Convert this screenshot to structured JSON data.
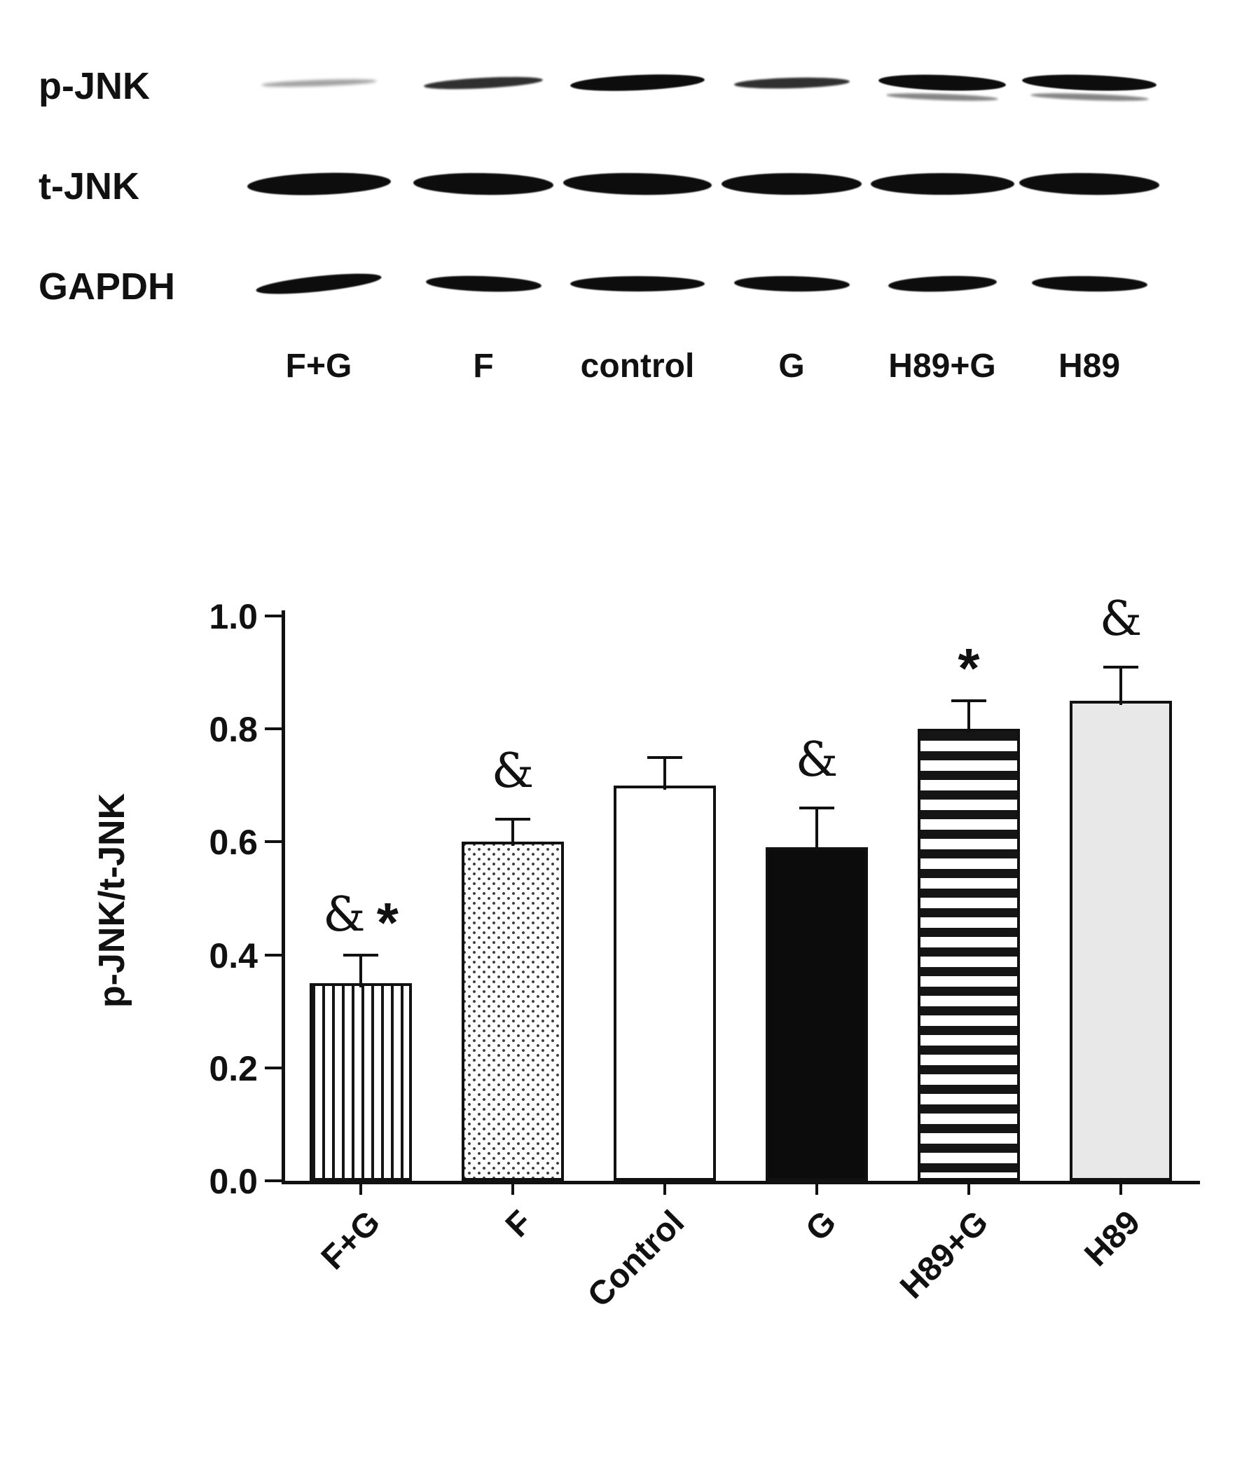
{
  "figure": {
    "blot": {
      "rows": [
        {
          "label": "p-JNK",
          "bands": [
            "faint",
            "medium",
            "strong",
            "medium",
            "strong-double",
            "strong-double"
          ]
        },
        {
          "label": "t-JNK",
          "bands": [
            "heavy",
            "heavy",
            "heavy",
            "heavy",
            "heavy",
            "heavy"
          ]
        },
        {
          "label": "GAPDH",
          "bands": [
            "strong",
            "strong",
            "strong",
            "strong",
            "strong",
            "strong"
          ]
        }
      ],
      "lane_labels": [
        "F+G",
        "F",
        "control",
        "G",
        "H89+G",
        "H89"
      ]
    }
  },
  "chart_data": {
    "type": "bar",
    "title": "",
    "xlabel": "",
    "ylabel": "p-JNK/t-JNK",
    "ylim": [
      0,
      1.0
    ],
    "yticks": [
      0.0,
      0.2,
      0.4,
      0.6,
      0.8,
      1.0
    ],
    "categories": [
      "F+G",
      "F",
      "Control",
      "G",
      "H89+G",
      "H89"
    ],
    "values": [
      0.35,
      0.6,
      0.7,
      0.59,
      0.8,
      0.85
    ],
    "errors": [
      0.05,
      0.04,
      0.05,
      0.07,
      0.05,
      0.06
    ],
    "significance": [
      "& *",
      "&",
      "",
      "&",
      "*",
      "&"
    ],
    "bar_styles": [
      "vertical-stripes",
      "stipple",
      "plain-white",
      "solid-black",
      "horizontal-stripes",
      "light-gray"
    ],
    "grid": false,
    "legend": "none",
    "colors": {
      "bar_border": "#111111",
      "axis": "#111111",
      "background": "#ffffff"
    }
  }
}
